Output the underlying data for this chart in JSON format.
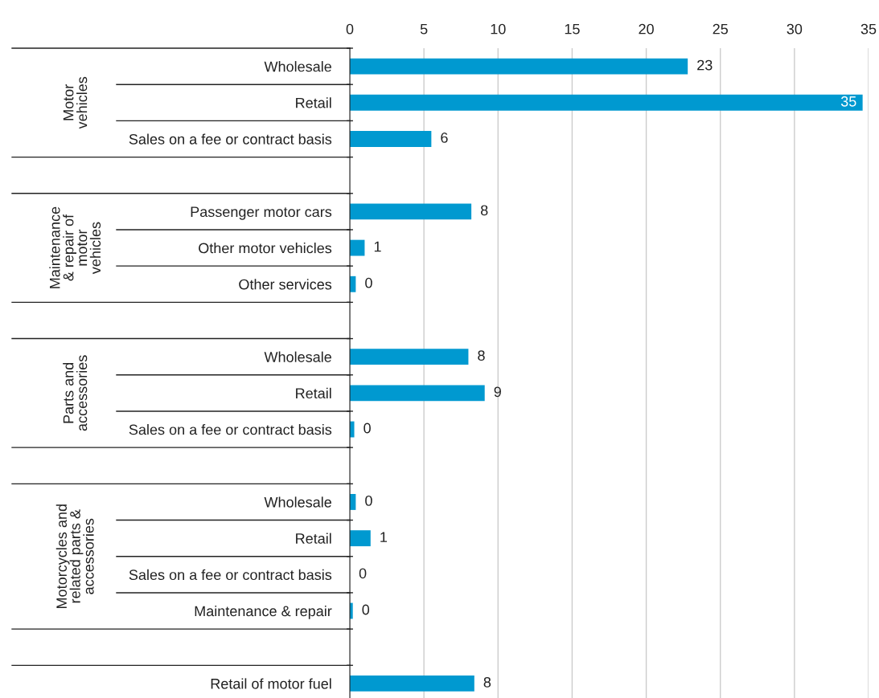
{
  "chart_data": {
    "type": "bar",
    "orientation": "horizontal",
    "color": "#0099d0",
    "categories": [
      "Wholesale",
      "Retail",
      "Sales on a fee or contract basis",
      null,
      "Passenger motor cars",
      "Other motor vehicles",
      "Other services",
      null,
      "Wholesale",
      "Retail",
      "Sales on a fee or contract basis",
      null,
      "Wholesale",
      "Retail",
      "Sales on a fee or contract basis",
      "Maintenance & repair",
      null,
      "Retail of motor fuel"
    ],
    "values": [
      22.8,
      34.6,
      5.5,
      null,
      8.2,
      1.0,
      0.4,
      null,
      8.0,
      9.1,
      0.3,
      null,
      0.4,
      1.4,
      0.0,
      0.2,
      null,
      8.4
    ],
    "value_labels": [
      "23",
      "35",
      "6",
      null,
      "8",
      "1",
      "0",
      null,
      "8",
      "9",
      "0",
      null,
      "0",
      "1",
      "0",
      "0",
      null,
      "8"
    ],
    "annotations": [
      "Motor\nvehicles",
      "Maintenance\n& repair of\nmotor\nvehicles",
      "Parts and\naccessories",
      "Motorcycles and\nrelated parts &\naccessories"
    ],
    "xlim": [
      0,
      35
    ],
    "xticks": [
      0,
      5,
      10,
      15,
      20,
      25,
      30,
      35
    ],
    "grid": "x"
  }
}
